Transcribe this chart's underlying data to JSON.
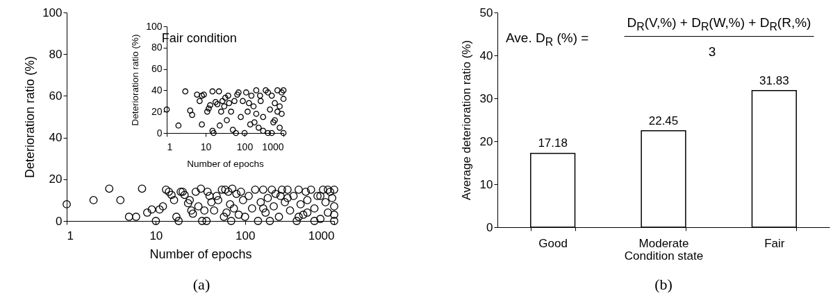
{
  "chart_data": [
    {
      "type": "scatter",
      "xlabel": "Number of epochs",
      "ylabel": "Deterioration ratio (%)",
      "log": "x",
      "marker": "circle",
      "xlim": [
        1,
        1000
      ],
      "ylim": [
        0,
        100
      ],
      "xticks": [
        1,
        10,
        100,
        1000
      ],
      "yticks": [
        0,
        20,
        40,
        60,
        80,
        100
      ],
      "annotations": [
        "(a)"
      ],
      "series": [
        {
          "color": "#000000",
          "x": [
            1,
            2,
            3,
            4,
            5,
            6,
            7,
            8,
            9,
            10,
            11,
            12,
            13,
            14,
            15,
            16,
            17,
            18,
            19,
            20,
            21,
            23,
            24,
            25,
            26,
            28,
            30,
            32,
            33,
            35,
            37,
            38,
            40,
            42,
            45,
            48,
            50,
            55,
            58,
            60,
            62,
            65,
            68,
            70,
            72,
            75,
            80,
            85,
            90,
            95,
            100,
            110,
            120,
            130,
            140,
            150,
            160,
            170,
            180,
            190,
            200,
            210,
            220,
            240,
            260,
            280,
            300,
            320,
            350,
            380,
            400,
            420,
            450,
            480,
            500,
            550,
            600,
            650,
            700,
            750,
            800,
            850,
            900,
            950,
            1000,
            1000,
            1000,
            1000,
            700,
            500,
            300,
            160,
            850,
            600,
            400,
            250
          ],
          "values": [
            8,
            10,
            15.5,
            10,
            2,
            2,
            15.5,
            4,
            5.5,
            0,
            5.5,
            7,
            15,
            14,
            12.5,
            10,
            2,
            0,
            14,
            14,
            12.5,
            8.5,
            10,
            5,
            3.5,
            14,
            7,
            15.5,
            0,
            5,
            0,
            14,
            12,
            9,
            5,
            12,
            10,
            15,
            2,
            15,
            4,
            14,
            8,
            0,
            15.5,
            6,
            13,
            3,
            14,
            10,
            2,
            12,
            6,
            15,
            0,
            9,
            15,
            4,
            11,
            0,
            15,
            7,
            13,
            2,
            15,
            9,
            15,
            5,
            12,
            0,
            15,
            8,
            3,
            14,
            10,
            15,
            6,
            12,
            1,
            15,
            9,
            4,
            14,
            11,
            0,
            15,
            7,
            3,
            12,
            4,
            11,
            6,
            15,
            0,
            2,
            12
          ]
        }
      ]
    },
    {
      "type": "scatter",
      "title": "Fair condition",
      "xlabel": "Number of epochs",
      "ylabel": "Deterioration ratio (%)",
      "log": "x",
      "marker": "circle",
      "xlim": [
        1,
        1000
      ],
      "ylim": [
        0,
        100
      ],
      "xticks": [
        1,
        10,
        100,
        1000
      ],
      "yticks": [
        0,
        20,
        40,
        60,
        80,
        100
      ],
      "series": [
        {
          "color": "#000000",
          "x": [
            1,
            2,
            3,
            4,
            4.5,
            6,
            7,
            8,
            8,
            9,
            11,
            12,
            13,
            15,
            15,
            16,
            18,
            20,
            22,
            23,
            25,
            27,
            30,
            32,
            35,
            38,
            40,
            45,
            50,
            55,
            60,
            65,
            70,
            80,
            90,
            100,
            110,
            120,
            140,
            150,
            170,
            200,
            230,
            260,
            300,
            350,
            400,
            450,
            500,
            550,
            600,
            700,
            800,
            900,
            1000,
            1000,
            1000,
            800,
            600,
            400,
            300,
            200,
            130,
            700,
            500,
            900,
            250,
            180
          ],
          "values": [
            22,
            7,
            39,
            21,
            17,
            36,
            30,
            8,
            35,
            36,
            20,
            23,
            26,
            39,
            2,
            0,
            29,
            27,
            39,
            7,
            20,
            30,
            25,
            33,
            12,
            35,
            28,
            20,
            3,
            30,
            0,
            36,
            38,
            15,
            30,
            0,
            38,
            20,
            8,
            35,
            25,
            40,
            5,
            30,
            15,
            40,
            0,
            22,
            35,
            10,
            28,
            40,
            5,
            18,
            32,
            0,
            40,
            25,
            12,
            38,
            2,
            18,
            28,
            20,
            0,
            38,
            35,
            10
          ]
        }
      ]
    },
    {
      "type": "bar",
      "xlabel": "Condition state",
      "ylabel": "Average deterioration ratio (%)",
      "categories": [
        "Good",
        "Moderate",
        "Fair"
      ],
      "ylim": [
        0,
        50
      ],
      "yticks": [
        0,
        10,
        20,
        30,
        40,
        50
      ],
      "data_labels": true,
      "annotations": [
        "Ave. D$_{R}$ (%) =",
        "D$_{R}$(V,%) + D$_{R}$(W,%) + D$_{R}$(R,%)",
        "3",
        "(b)"
      ],
      "series": [
        {
          "color": "#ffffff",
          "values": [
            17.18,
            22.45,
            31.83
          ]
        }
      ]
    }
  ]
}
